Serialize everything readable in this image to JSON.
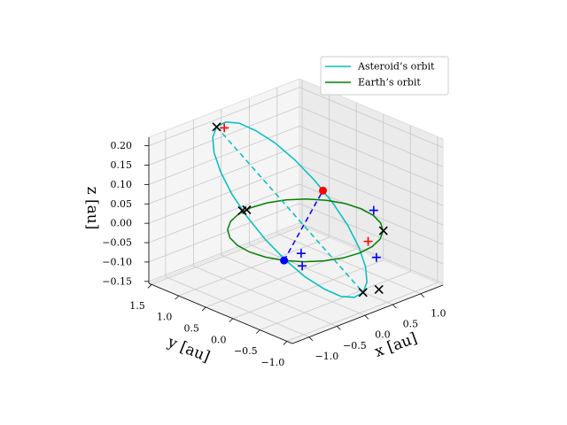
{
  "chart_data": {
    "type": "line3d",
    "xlabel": "x [au]",
    "ylabel": "y [au]",
    "zlabel": "z [au]",
    "xlim": [
      -1.3,
      1.4
    ],
    "ylim": [
      -1.1,
      1.55
    ],
    "zlim": [
      -0.155,
      0.222
    ],
    "xticks": [
      {
        "value": -1.0,
        "label": "−1.0"
      },
      {
        "value": -0.5,
        "label": "−0.5"
      },
      {
        "value": 0.0,
        "label": "0.0"
      },
      0.5,
      {
        "value": 1.0,
        "label": "1.0"
      }
    ],
    "yticks": [
      {
        "value": -1.0,
        "label": "−1.0"
      },
      {
        "value": -0.5,
        "label": "−0.5"
      },
      {
        "value": 0.0,
        "label": "0.0"
      },
      0.5,
      {
        "value": 1.0,
        "label": "1.0"
      },
      1.5
    ],
    "zticks": [
      {
        "value": -0.15,
        "label": "−0.15"
      },
      {
        "value": -0.1,
        "label": "−0.10"
      },
      {
        "value": -0.05,
        "label": "−0.05"
      },
      {
        "value": 0.0,
        "label": "0.00"
      },
      0.05,
      {
        "value": 0.1,
        "label": "0.10"
      },
      0.15,
      {
        "value": 0.2,
        "label": "0.20"
      }
    ],
    "grid": true,
    "legend": "upper right",
    "series": [
      {
        "name": "Asteroid’s orbit",
        "color": "#00bfbf",
        "x": [
          -0.25,
          -0.103,
          0.05,
          0.196,
          0.328,
          0.435,
          0.51,
          0.549,
          0.548,
          0.507,
          0.431,
          0.322,
          0.19,
          0.043,
          -0.11,
          -0.256,
          -0.388,
          -0.495,
          -0.57,
          -0.609,
          -0.608,
          -0.567,
          -0.491,
          -0.382,
          -0.25
        ],
        "y": [
          1.38,
          1.368,
          1.279,
          1.121,
          0.904,
          0.643,
          0.355,
          0.06,
          -0.221,
          -0.469,
          -0.669,
          -0.806,
          -0.87,
          -0.858,
          -0.769,
          -0.611,
          -0.394,
          -0.133,
          0.155,
          0.45,
          0.731,
          0.979,
          1.179,
          1.316,
          1.38
        ],
        "z": [
          0.2,
          0.205,
          0.199,
          0.181,
          0.155,
          0.12,
          0.08,
          0.037,
          -0.005,
          -0.045,
          -0.079,
          -0.104,
          -0.12,
          -0.125,
          -0.119,
          -0.101,
          -0.075,
          -0.04,
          0,
          0.043,
          0.085,
          0.125,
          0.159,
          0.184,
          0.2
        ]
      },
      {
        "name": "Earth’s orbit",
        "color": "#008000",
        "x": [
          1,
          0.966,
          0.866,
          0.707,
          0.5,
          0.259,
          0,
          -0.259,
          -0.5,
          -0.707,
          -0.866,
          -0.966,
          -1,
          -0.966,
          -0.866,
          -0.707,
          -0.5,
          -0.259,
          0,
          0.259,
          0.5,
          0.707,
          0.866,
          0.966,
          1
        ],
        "y": [
          0,
          0.259,
          0.5,
          0.707,
          0.866,
          0.966,
          1,
          0.966,
          0.866,
          0.707,
          0.5,
          0.259,
          0,
          -0.259,
          -0.5,
          -0.707,
          -0.866,
          -0.966,
          -1,
          -0.966,
          -0.866,
          -0.707,
          -0.5,
          -0.259,
          0
        ],
        "z": [
          0,
          0,
          0,
          0,
          0,
          0,
          0,
          0,
          0,
          0,
          0,
          0,
          0,
          0,
          0,
          0,
          0,
          0,
          0,
          0,
          0,
          0,
          0,
          0,
          0
        ]
      }
    ],
    "dashed_lines": [
      {
        "color": "#00bfbf",
        "x": [
          -0.25,
          0.19
        ],
        "y": [
          1.38,
          -0.87
        ],
        "z": [
          0.2,
          -0.12
        ]
      },
      {
        "color": "#0000ff",
        "x": [
          -0.866,
          0.53
        ],
        "y": [
          -0.5,
          0.22
        ],
        "z": [
          0,
          0.06
        ]
      }
    ],
    "markers": [
      {
        "marker": "o",
        "color": "#ff0000",
        "x": [
          0.53
        ],
        "y": [
          0.22
        ],
        "z": [
          0.06
        ]
      },
      {
        "marker": "o",
        "color": "#0000ff",
        "x": [
          -0.866
        ],
        "y": [
          -0.5
        ],
        "z": [
          0
        ]
      },
      {
        "marker": "x",
        "color": "#000000",
        "x": [
          -0.25,
          0.19,
          0.32,
          -0.15,
          -0.09,
          0.72
        ],
        "y": [
          1.38,
          -0.87,
          -1.03,
          1.01,
          0.99,
          -0.7
        ],
        "z": [
          0.2,
          -0.12,
          -0.11,
          0,
          0,
          0
        ]
      },
      {
        "marker": "+",
        "color": "#ff0000",
        "x": [
          -0.2,
          0.34
        ],
        "y": [
          1.29,
          -0.81
        ],
        "z": [
          0.2,
          0
        ]
      },
      {
        "marker": "+",
        "color": "#0000ff",
        "x": [
          1.08,
          0.75,
          -0.55,
          -0.56
        ],
        "y": [
          -0.15,
          -0.54,
          -0.49,
          -0.52
        ],
        "z": [
          0,
          -0.08,
          0,
          -0.03
        ]
      }
    ]
  }
}
